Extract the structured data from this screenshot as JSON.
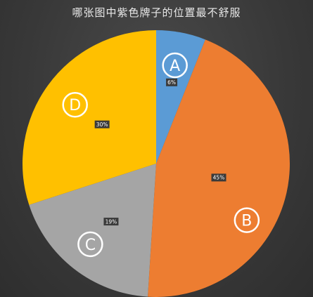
{
  "chart_data": {
    "type": "pie",
    "title": "哪张图中紫色牌子的位置最不舒服",
    "categories": [
      "A",
      "B",
      "C",
      "D"
    ],
    "values": [
      6,
      45,
      19,
      30
    ],
    "value_labels": [
      "6%",
      "45%",
      "19%",
      "30%"
    ],
    "colors": [
      "#5b9bd5",
      "#ed7d31",
      "#a5a5a5",
      "#ffc000"
    ],
    "start": "12 o'clock",
    "direction": "clockwise"
  }
}
